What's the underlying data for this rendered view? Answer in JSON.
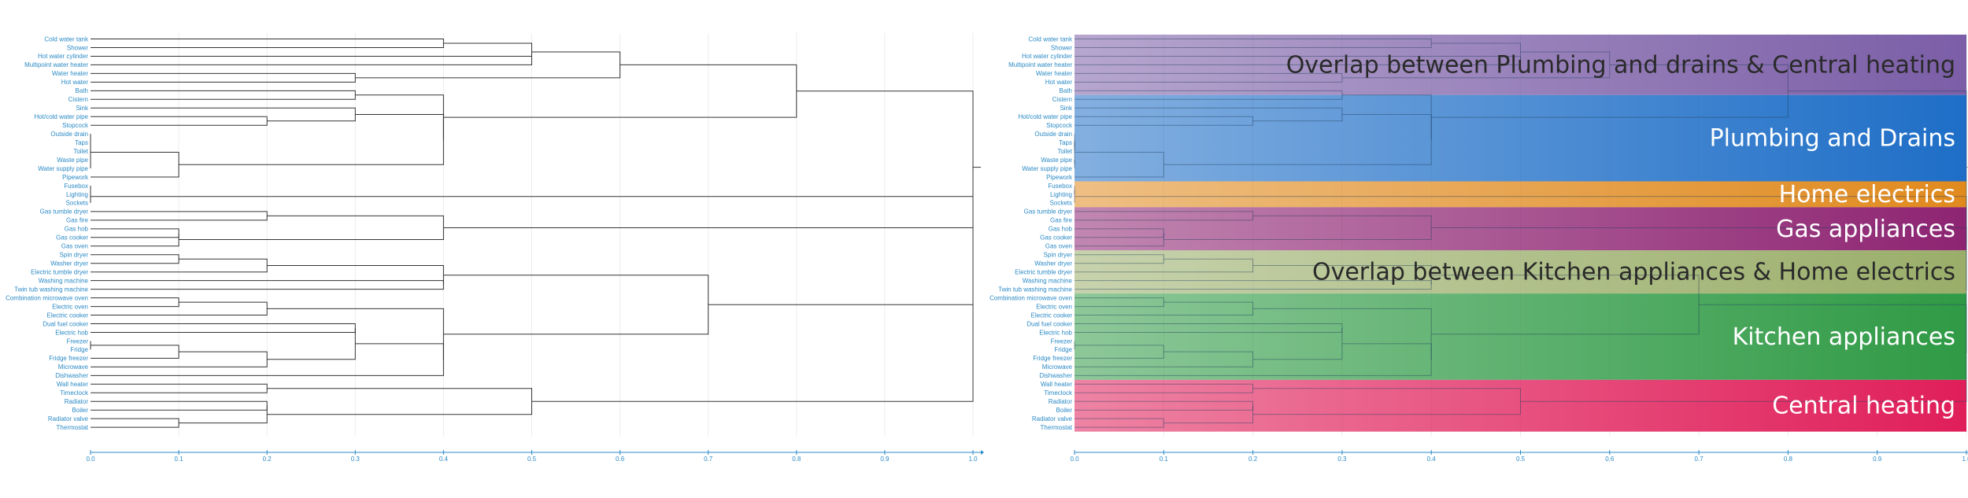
{
  "leaves": [
    "Cold water tank",
    "Shower",
    "Hot water cylinder",
    "Multipoint water heater",
    "Water heater",
    "Hot water",
    "Bath",
    "Cistern",
    "Sink",
    "Hot/cold water pipe",
    "Stopcock",
    "Outside drain",
    "Taps",
    "Toilet",
    "Waste pipe",
    "Water supply pipe",
    "Pipework",
    "Fusebox",
    "Lighting",
    "Sockets",
    "Gas tumble dryer",
    "Gas fire",
    "Gas hob",
    "Gas cooker",
    "Gas oven",
    "Spin dryer",
    "Washer dryer",
    "Electric tumble dryer",
    "Washing machine",
    "Twin tub washing machine",
    "Combination microwave oven",
    "Electric oven",
    "Electric cooker",
    "Dual fuel cooker",
    "Electric hob",
    "Freezer",
    "Fridge",
    "Fridge freezer",
    "Microwave",
    "Dishwasher",
    "Wall heater",
    "Timeclock",
    "Radiator",
    "Boiler",
    "Radiator valve",
    "Thermostat"
  ],
  "axis_ticks": [
    "0.0",
    "0.1",
    "0.2",
    "0.3",
    "0.4",
    "0.5",
    "0.6",
    "0.7",
    "0.8",
    "0.9",
    "1.0"
  ],
  "merges": [
    [
      0,
      1,
      0.4
    ],
    [
      2,
      3,
      0.5
    ],
    [
      0,
      2,
      0.5
    ],
    [
      4,
      5,
      0.3
    ],
    [
      0,
      4,
      0.6
    ],
    [
      6,
      7,
      0.3
    ],
    [
      9,
      10,
      0.2
    ],
    [
      8,
      9,
      0.3
    ],
    [
      12,
      13,
      0.0
    ],
    [
      11,
      12,
      0.0
    ],
    [
      14,
      15,
      0.0
    ],
    [
      11,
      14,
      0.0
    ],
    [
      11,
      16,
      0.1
    ],
    [
      8,
      11,
      0.4
    ],
    [
      6,
      8,
      0.4
    ],
    [
      0,
      6,
      0.8
    ],
    [
      17,
      18,
      0.0
    ],
    [
      17,
      19,
      0.0
    ],
    [
      20,
      21,
      0.2
    ],
    [
      22,
      23,
      0.1
    ],
    [
      22,
      24,
      0.1
    ],
    [
      20,
      22,
      0.4
    ],
    [
      25,
      26,
      0.1
    ],
    [
      25,
      27,
      0.2
    ],
    [
      28,
      29,
      0.4
    ],
    [
      25,
      28,
      0.4
    ],
    [
      30,
      31,
      0.1
    ],
    [
      30,
      32,
      0.2
    ],
    [
      33,
      34,
      0.3
    ],
    [
      35,
      36,
      0.0
    ],
    [
      35,
      37,
      0.1
    ],
    [
      35,
      38,
      0.2
    ],
    [
      33,
      35,
      0.3
    ],
    [
      33,
      39,
      0.4
    ],
    [
      30,
      33,
      0.4
    ],
    [
      25,
      30,
      0.7
    ],
    [
      40,
      41,
      0.2
    ],
    [
      42,
      43,
      0.2
    ],
    [
      44,
      45,
      0.1
    ],
    [
      42,
      44,
      0.2
    ],
    [
      40,
      42,
      0.5
    ],
    [
      25,
      40,
      1.0
    ],
    [
      20,
      25,
      1.0
    ],
    [
      17,
      20,
      1.0
    ],
    [
      0,
      17,
      1.0
    ]
  ],
  "bands": [
    {
      "label": "Overlap between Plumbing and drains & Central heating",
      "color": "#7b5ea7",
      "from": 0,
      "to": 6,
      "text_dark": true
    },
    {
      "label": "Plumbing and Drains",
      "color": "#1e6ec7",
      "from": 7,
      "to": 16,
      "text_dark": false
    },
    {
      "label": "Home electrics",
      "color": "#e08a1e",
      "from": 17,
      "to": 19,
      "text_dark": false
    },
    {
      "label": "Gas appliances",
      "color": "#8e2472",
      "from": 20,
      "to": 24,
      "text_dark": false
    },
    {
      "label": "Overlap between Kitchen appliances & Home electrics",
      "color": "#9aae6a",
      "from": 25,
      "to": 29,
      "text_dark": true
    },
    {
      "label": "Kitchen appliances",
      "color": "#2f9a45",
      "from": 30,
      "to": 39,
      "text_dark": false
    },
    {
      "label": "Central heating",
      "color": "#e01e5a",
      "from": 40,
      "to": 45,
      "text_dark": false
    }
  ]
}
